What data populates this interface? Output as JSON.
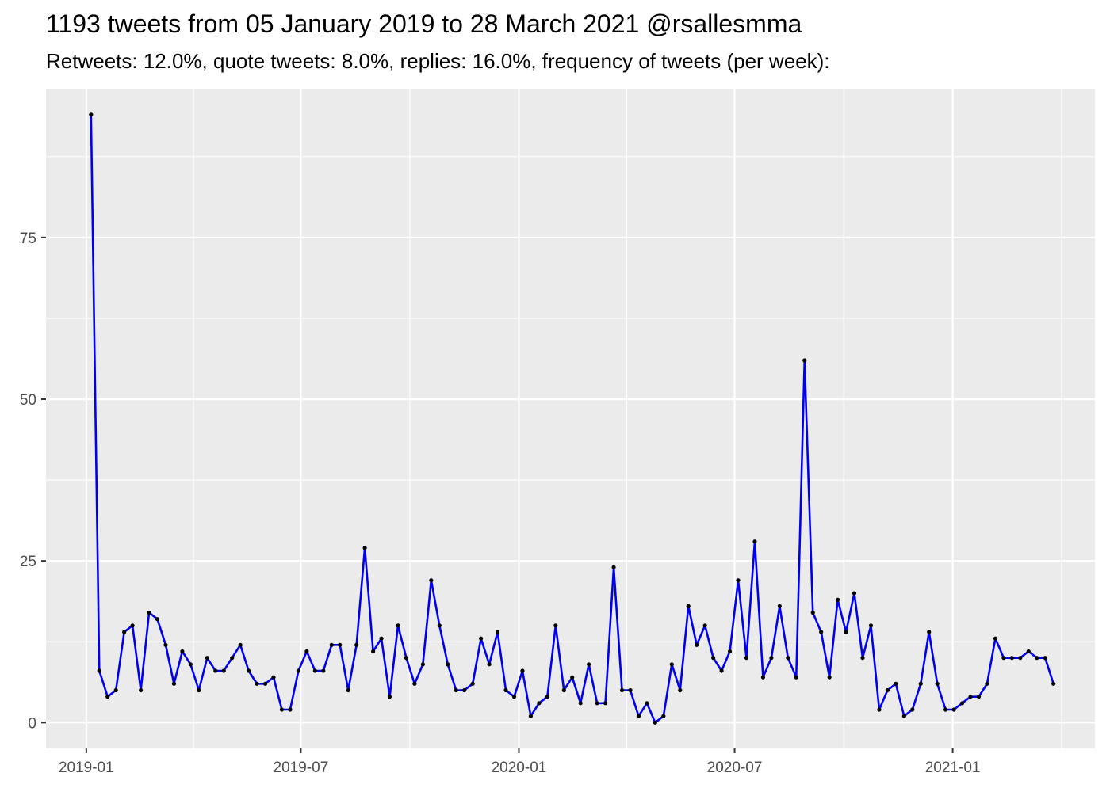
{
  "chart_data": {
    "type": "line",
    "title": "1193 tweets from 05 January 2019 to 28 March 2021 @rsallesmma",
    "subtitle": "Retweets: 12.0%, quote tweets: 8.0%, replies: 16.0%, frequency of tweets (per week):",
    "xlabel": "",
    "ylabel": "",
    "x_axis": {
      "type": "date",
      "range": [
        "2018-11-28",
        "2021-05-01"
      ],
      "ticks": [
        "2019-01",
        "2019-07",
        "2020-01",
        "2020-07",
        "2021-01"
      ]
    },
    "y_axis": {
      "range": [
        -4,
        98
      ],
      "ticks": [
        0,
        25,
        50,
        75
      ]
    },
    "grid": true,
    "colors": {
      "line": "#0000ee",
      "points": "#000000",
      "panel": "#ebebeb",
      "grid": "#ffffff"
    },
    "series": [
      {
        "start": "2019-01-05",
        "interval_days": 7,
        "values": [
          94,
          8,
          4,
          5,
          14,
          15,
          5,
          17,
          16,
          12,
          6,
          11,
          9,
          5,
          10,
          8,
          8,
          10,
          12,
          8,
          6,
          6,
          7,
          2,
          2,
          8,
          11,
          8,
          8,
          12,
          12,
          5,
          12,
          27,
          11,
          13,
          4,
          15,
          10,
          6,
          9,
          22,
          15,
          9,
          5,
          5,
          6,
          13,
          9,
          14,
          5,
          4,
          8,
          1,
          3,
          4,
          15,
          5,
          7,
          3,
          9,
          3,
          3,
          24,
          5,
          5,
          1,
          3,
          0,
          1,
          9,
          5,
          18,
          12,
          15,
          10,
          8,
          11,
          22,
          10,
          28,
          7,
          10,
          18,
          10,
          7,
          56,
          17,
          14,
          7,
          19,
          14,
          20,
          10,
          15,
          2,
          5,
          6,
          1,
          2,
          6,
          14,
          6,
          2,
          2,
          3,
          4,
          4,
          6,
          13,
          10,
          10,
          10,
          11,
          10,
          10,
          6
        ]
      }
    ]
  }
}
